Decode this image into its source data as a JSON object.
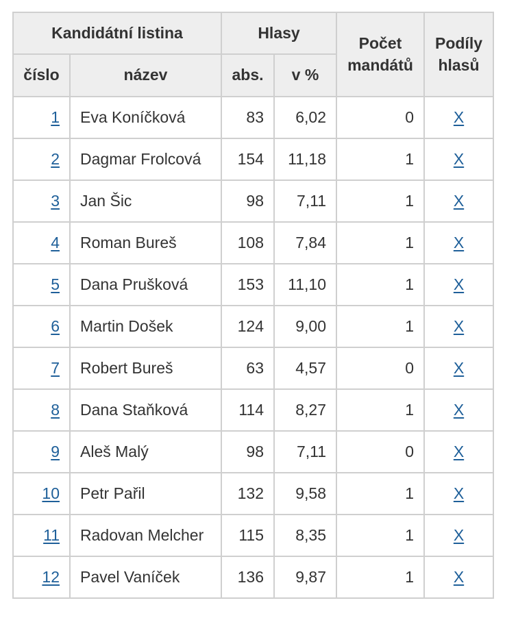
{
  "header": {
    "candidate_list": "Kandidátní listina",
    "votes": "Hlasy",
    "mandates": "Počet mandátů",
    "shares": "Podíly hlasů",
    "number": "číslo",
    "name": "název",
    "abs": "abs.",
    "pct": "v %"
  },
  "rows": [
    {
      "num": "1",
      "name": "Eva Koníčková",
      "abs": "83",
      "pct": "6,02",
      "mandates": "0",
      "share": "X"
    },
    {
      "num": "2",
      "name": "Dagmar Frolcová",
      "abs": "154",
      "pct": "11,18",
      "mandates": "1",
      "share": "X"
    },
    {
      "num": "3",
      "name": "Jan Šic",
      "abs": "98",
      "pct": "7,11",
      "mandates": "1",
      "share": "X"
    },
    {
      "num": "4",
      "name": "Roman Bureš",
      "abs": "108",
      "pct": "7,84",
      "mandates": "1",
      "share": "X"
    },
    {
      "num": "5",
      "name": "Dana Prušková",
      "abs": "153",
      "pct": "11,10",
      "mandates": "1",
      "share": "X"
    },
    {
      "num": "6",
      "name": "Martin Došek",
      "abs": "124",
      "pct": "9,00",
      "mandates": "1",
      "share": "X"
    },
    {
      "num": "7",
      "name": "Robert Bureš",
      "abs": "63",
      "pct": "4,57",
      "mandates": "0",
      "share": "X"
    },
    {
      "num": "8",
      "name": "Dana Staňková",
      "abs": "114",
      "pct": "8,27",
      "mandates": "1",
      "share": "X"
    },
    {
      "num": "9",
      "name": "Aleš Malý",
      "abs": "98",
      "pct": "7,11",
      "mandates": "0",
      "share": "X"
    },
    {
      "num": "10",
      "name": "Petr Pařil",
      "abs": "132",
      "pct": "9,58",
      "mandates": "1",
      "share": "X"
    },
    {
      "num": "11",
      "name": "Radovan Melcher",
      "abs": "115",
      "pct": "8,35",
      "mandates": "1",
      "share": "X"
    },
    {
      "num": "12",
      "name": "Pavel Vaníček",
      "abs": "136",
      "pct": "9,87",
      "mandates": "1",
      "share": "X"
    }
  ]
}
